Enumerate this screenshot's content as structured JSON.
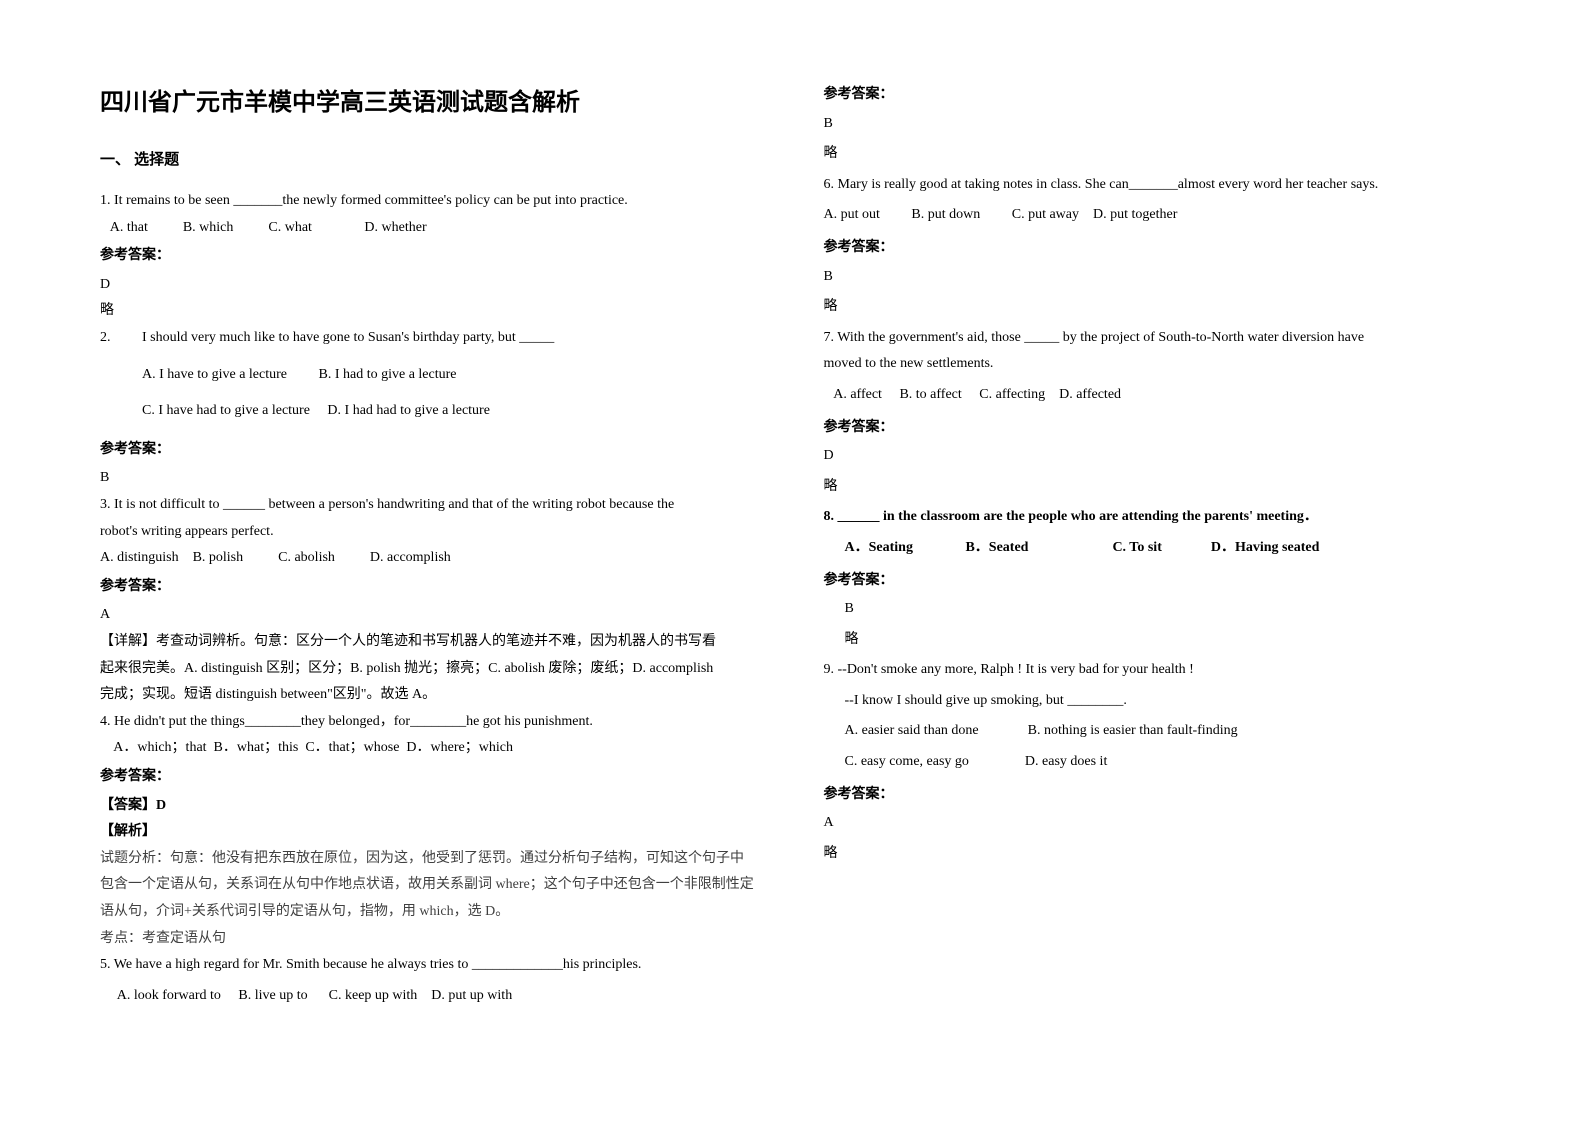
{
  "title": "四川省广元市羊模中学高三英语测试题含解析",
  "section1": "一、 选择题",
  "answerLabel": "参考答案：",
  "lue": "略",
  "q1": "1. It remains to be seen _______the newly formed committee's policy can be put into practice.",
  "q1opts": "   A. that          B. which          C. what               D. whether",
  "q1ans": "D",
  "q2": "2.         I should very much like to have gone to Susan's birthday party, but _____",
  "q2a": "A. I have to give a lecture         B. I had to give a lecture",
  "q2b": "C. I have had to give a lecture     D. I had had to give a lecture",
  "q2ans": "B",
  "q3a": "3. It is not difficult to ______ between a person's handwriting and that of the writing robot because the",
  "q3b": "robot's writing appears perfect.",
  "q3opts": "A. distinguish    B. polish          C. abolish          D. accomplish",
  "q3ans": "A",
  "q3exp1": "【详解】考查动词辨析。句意：区分一个人的笔迹和书写机器人的笔迹并不难，因为机器人的书写看",
  "q3exp2": "起来很完美。A. distinguish 区别；区分；B. polish 抛光；擦亮；C. abolish 废除；废纸；D. accomplish",
  "q3exp3": "完成；实现。短语 distinguish between\"区别\"。故选 A。",
  "q4": "4. He didn't put the things________they belonged，for________he got his punishment.",
  "q4opts": "    A．which；that  B．what；this  C．that；whose  D．where；which",
  "q4ansLabel": "【答案】D",
  "q4eLabel": "【解析】",
  "q4e1": "试题分析：句意：他没有把东西放在原位，因为这，他受到了惩罚。通过分析句子结构，可知这个句子中",
  "q4e2": "包含一个定语从句，关系词在从句中作地点状语，故用关系副词 where；这个句子中还包含一个非限制性定",
  "q4e3": "语从句，介词+关系代词引导的定语从句，指物，用 which，选 D。",
  "q4e4": "考点：考查定语从句",
  "q5": "5. We have a high regard for Mr. Smith because he always tries to _____________his principles.",
  "q5opts": "     A. look forward to     B. live up to      C. keep up with    D. put up with",
  "q5ans": "B",
  "q6": "6. Mary is really good at taking notes in class. She can_______almost every word her teacher says.",
  "q6opts": "A. put out         B. put down         C. put away    D. put together",
  "q6ans": "B",
  "q7a": "7. With the government's aid, those _____ by the project of South-to-North water diversion have",
  "q7b": "moved to the new settlements.",
  "q7opts": "   A. affect     B. to affect     C. affecting    D. affected",
  "q7ans": "D",
  "q8": "8. ______ in the classroom are the people who are attending the parents' meeting．",
  "q8opts": "A．Seating               B．Seated                        C. To sit              D．Having seated",
  "q8ans": "B",
  "q9a": "9. --Don't smoke any more, Ralph ! It is very bad for your health !",
  "q9b": "--I know I should give up smoking, but ________.",
  "q9opt1": "A. easier said than done              B. nothing is easier than fault-finding",
  "q9opt2": "C. easy come, easy go                D. easy does it",
  "q9ans": "A"
}
